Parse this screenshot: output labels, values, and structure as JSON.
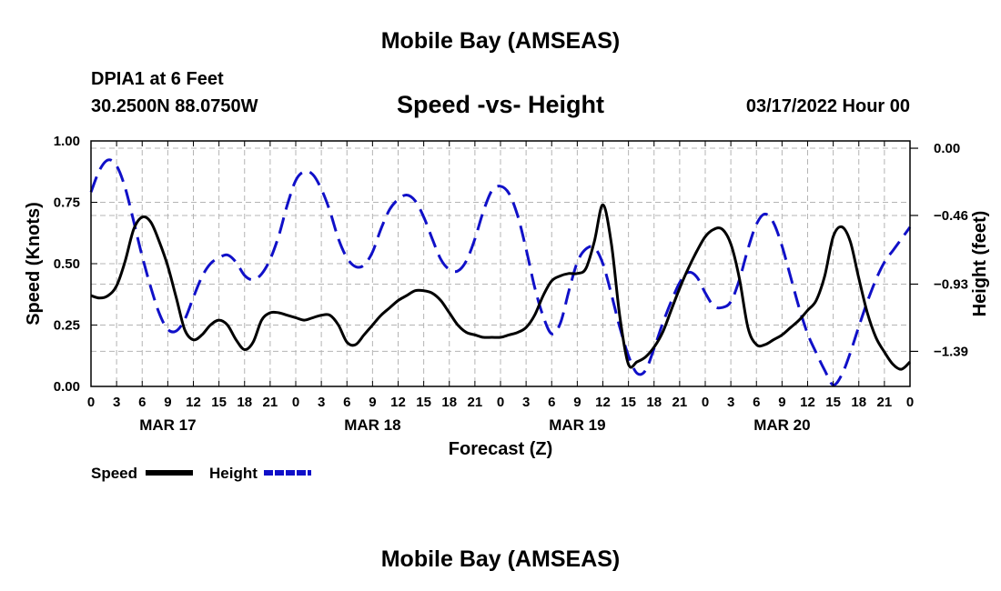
{
  "header": {
    "title": "Mobile Bay (AMSEAS)",
    "station": "DPIA1 at 6 Feet",
    "coordinates": "30.2500N  88.0750W",
    "chart_title": "Speed -vs- Height",
    "datetime": "03/17/2022 Hour 00"
  },
  "footer": {
    "title": "Mobile Bay (AMSEAS)"
  },
  "colors": {
    "speed": "#000000",
    "height": "#1010c8",
    "grid": "#b4b4b4"
  },
  "chart_data": {
    "type": "line",
    "title": "Speed -vs- Height",
    "xlabel": "Forecast (Z)",
    "x_range": [
      0,
      96
    ],
    "x_tick_step": 3,
    "x_tick_labels": [
      "0",
      "3",
      "6",
      "9",
      "12",
      "15",
      "18",
      "21",
      "0",
      "3",
      "6",
      "9",
      "12",
      "15",
      "18",
      "21",
      "0",
      "3",
      "6",
      "9",
      "12",
      "15",
      "18",
      "21",
      "0",
      "3",
      "6",
      "9",
      "12",
      "15",
      "18",
      "21",
      "0"
    ],
    "day_labels": [
      {
        "label": "MAR 17",
        "x": 9
      },
      {
        "label": "MAR 18",
        "x": 33
      },
      {
        "label": "MAR 19",
        "x": 57
      },
      {
        "label": "MAR 20",
        "x": 81
      }
    ],
    "left_axis": {
      "label": "Speed (Knots)",
      "range": [
        0,
        1
      ],
      "ticks": [
        0,
        0.25,
        0.5,
        0.75,
        1
      ],
      "tick_labels": [
        "0.00",
        "0.25",
        "0.50",
        "0.75",
        "1.00"
      ]
    },
    "right_axis": {
      "label": "Height (feet)",
      "range": [
        -1.63,
        0.05
      ],
      "ticks": [
        0,
        -0.46,
        -0.93,
        -1.39
      ],
      "tick_labels": [
        "0.00",
        "−0.46",
        "−0.93",
        "−1.39"
      ]
    },
    "legend": [
      {
        "name": "Speed",
        "style": "solid"
      },
      {
        "name": "Height",
        "style": "dashed"
      }
    ],
    "legend_position": "bottom-left",
    "series": [
      {
        "name": "Speed",
        "axis": "left",
        "style": "solid",
        "x": [
          0,
          1,
          2,
          3,
          4,
          5,
          6,
          7,
          8,
          9,
          10,
          11,
          12,
          13,
          14,
          15,
          16,
          17,
          18,
          19,
          20,
          21,
          22,
          23,
          24,
          25,
          26,
          27,
          28,
          29,
          30,
          31,
          32,
          33,
          34,
          35,
          36,
          37,
          38,
          39,
          40,
          41,
          42,
          43,
          44,
          45,
          46,
          47,
          48,
          49,
          50,
          51,
          52,
          53,
          54,
          55,
          56,
          57,
          58,
          59,
          60,
          61,
          62,
          63,
          64,
          65,
          66,
          67,
          68,
          69,
          70,
          71,
          72,
          73,
          74,
          75,
          76,
          77,
          78,
          79,
          80,
          81,
          82,
          83,
          84,
          85,
          86,
          87,
          88,
          89,
          90,
          91,
          92,
          93,
          94,
          95,
          96
        ],
        "values": [
          0.37,
          0.36,
          0.37,
          0.41,
          0.51,
          0.64,
          0.69,
          0.67,
          0.59,
          0.49,
          0.36,
          0.23,
          0.19,
          0.21,
          0.25,
          0.27,
          0.25,
          0.19,
          0.15,
          0.18,
          0.27,
          0.3,
          0.3,
          0.29,
          0.28,
          0.27,
          0.28,
          0.29,
          0.29,
          0.25,
          0.18,
          0.17,
          0.21,
          0.25,
          0.29,
          0.32,
          0.35,
          0.37,
          0.39,
          0.39,
          0.38,
          0.35,
          0.3,
          0.25,
          0.22,
          0.21,
          0.2,
          0.2,
          0.2,
          0.21,
          0.22,
          0.24,
          0.29,
          0.37,
          0.43,
          0.45,
          0.46,
          0.46,
          0.48,
          0.59,
          0.74,
          0.58,
          0.28,
          0.09,
          0.1,
          0.12,
          0.16,
          0.22,
          0.31,
          0.4,
          0.48,
          0.55,
          0.61,
          0.64,
          0.64,
          0.58,
          0.44,
          0.24,
          0.17,
          0.17,
          0.19,
          0.21,
          0.24,
          0.27,
          0.31,
          0.35,
          0.45,
          0.61,
          0.65,
          0.59,
          0.44,
          0.3,
          0.2,
          0.14,
          0.09,
          0.07,
          0.1
        ]
      },
      {
        "name": "Height",
        "axis": "right",
        "style": "dashed",
        "x": [
          0,
          1,
          2,
          3,
          4,
          5,
          6,
          7,
          8,
          9,
          10,
          11,
          12,
          13,
          14,
          15,
          16,
          17,
          18,
          19,
          20,
          21,
          22,
          23,
          24,
          25,
          26,
          27,
          28,
          29,
          30,
          31,
          32,
          33,
          34,
          35,
          36,
          37,
          38,
          39,
          40,
          41,
          42,
          43,
          44,
          45,
          46,
          47,
          48,
          49,
          50,
          51,
          52,
          53,
          54,
          55,
          56,
          57,
          58,
          59,
          60,
          61,
          62,
          63,
          64,
          65,
          66,
          67,
          68,
          69,
          70,
          71,
          72,
          73,
          74,
          75,
          76,
          77,
          78,
          79,
          80,
          81,
          82,
          83,
          84,
          85,
          86,
          87,
          88,
          89,
          90,
          91,
          92,
          93,
          94,
          95,
          96
        ],
        "values": [
          -0.3,
          -0.15,
          -0.08,
          -0.12,
          -0.27,
          -0.5,
          -0.74,
          -0.95,
          -1.13,
          -1.24,
          -1.25,
          -1.17,
          -1.02,
          -0.88,
          -0.79,
          -0.75,
          -0.73,
          -0.78,
          -0.87,
          -0.9,
          -0.86,
          -0.76,
          -0.6,
          -0.39,
          -0.22,
          -0.16,
          -0.18,
          -0.28,
          -0.43,
          -0.62,
          -0.75,
          -0.81,
          -0.8,
          -0.71,
          -0.55,
          -0.42,
          -0.35,
          -0.32,
          -0.36,
          -0.47,
          -0.62,
          -0.76,
          -0.83,
          -0.84,
          -0.77,
          -0.62,
          -0.43,
          -0.29,
          -0.26,
          -0.31,
          -0.46,
          -0.69,
          -0.95,
          -1.15,
          -1.27,
          -1.2,
          -0.98,
          -0.78,
          -0.69,
          -0.68,
          -0.79,
          -1.0,
          -1.23,
          -1.42,
          -1.54,
          -1.52,
          -1.37,
          -1.2,
          -1.05,
          -0.92,
          -0.85,
          -0.88,
          -0.99,
          -1.08,
          -1.09,
          -1.05,
          -0.9,
          -0.69,
          -0.52,
          -0.45,
          -0.51,
          -0.67,
          -0.88,
          -1.09,
          -1.27,
          -1.4,
          -1.52,
          -1.62,
          -1.55,
          -1.4,
          -1.22,
          -1.05,
          -0.9,
          -0.78,
          -0.7,
          -0.62,
          -0.54
        ]
      }
    ]
  }
}
